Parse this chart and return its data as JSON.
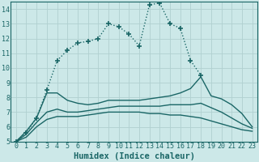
{
  "xlabel": "Humidex (Indice chaleur)",
  "xlim": [
    -0.5,
    23.5
  ],
  "ylim": [
    5,
    14.5
  ],
  "bg_color": "#cce8e8",
  "grid_color": "#b0d0d0",
  "line_color": "#1a6666",
  "lines": [
    {
      "x": [
        0,
        1,
        2,
        3,
        4,
        5,
        6,
        7,
        8,
        9,
        10,
        11,
        12,
        13,
        14,
        15,
        16,
        17,
        18,
        19,
        20,
        21,
        22,
        23
      ],
      "y": [
        5.0,
        5.6,
        6.6,
        8.5,
        10.5,
        11.2,
        11.7,
        11.8,
        12.0,
        13.0,
        12.8,
        12.3,
        11.5,
        14.3,
        14.4,
        13.0,
        12.7,
        10.5,
        9.5,
        null,
        null,
        null,
        null,
        null
      ],
      "marker": "+",
      "markersize": 5,
      "linewidth": 1.0,
      "linestyle": "dotted"
    },
    {
      "x": [
        0,
        1,
        2,
        3,
        4,
        5,
        6,
        7,
        8,
        9,
        10,
        11,
        12,
        13,
        14,
        15,
        16,
        17,
        18,
        19,
        20,
        21,
        22,
        23
      ],
      "y": [
        5.0,
        5.7,
        6.6,
        8.3,
        8.3,
        7.8,
        7.6,
        7.5,
        7.6,
        7.8,
        7.8,
        7.8,
        7.8,
        7.9,
        8.0,
        8.1,
        8.3,
        8.6,
        9.4,
        8.1,
        7.9,
        7.5,
        6.9,
        6.0
      ],
      "marker": null,
      "markersize": 0,
      "linewidth": 1.0,
      "linestyle": "solid"
    },
    {
      "x": [
        0,
        1,
        2,
        3,
        4,
        5,
        6,
        7,
        8,
        9,
        10,
        11,
        12,
        13,
        14,
        15,
        16,
        17,
        18,
        19,
        20,
        21,
        22,
        23
      ],
      "y": [
        5.0,
        5.5,
        6.3,
        7.0,
        7.2,
        7.0,
        7.0,
        7.1,
        7.2,
        7.3,
        7.4,
        7.4,
        7.4,
        7.4,
        7.4,
        7.5,
        7.5,
        7.5,
        7.6,
        7.3,
        7.0,
        6.6,
        6.2,
        5.9
      ],
      "marker": null,
      "markersize": 0,
      "linewidth": 1.0,
      "linestyle": "solid"
    },
    {
      "x": [
        0,
        1,
        2,
        3,
        4,
        5,
        6,
        7,
        8,
        9,
        10,
        11,
        12,
        13,
        14,
        15,
        16,
        17,
        18,
        19,
        20,
        21,
        22,
        23
      ],
      "y": [
        5.0,
        5.3,
        6.0,
        6.5,
        6.7,
        6.7,
        6.7,
        6.8,
        6.9,
        7.0,
        7.0,
        7.0,
        7.0,
        6.9,
        6.9,
        6.8,
        6.8,
        6.7,
        6.6,
        6.4,
        6.2,
        6.0,
        5.8,
        5.7
      ],
      "marker": null,
      "markersize": 0,
      "linewidth": 1.0,
      "linestyle": "solid"
    }
  ],
  "xticks": [
    0,
    1,
    2,
    3,
    4,
    5,
    6,
    7,
    8,
    9,
    10,
    11,
    12,
    13,
    14,
    15,
    16,
    17,
    18,
    19,
    20,
    21,
    22,
    23
  ],
  "yticks": [
    5,
    6,
    7,
    8,
    9,
    10,
    11,
    12,
    13,
    14
  ],
  "tick_fontsize": 6,
  "label_fontsize": 7.5
}
